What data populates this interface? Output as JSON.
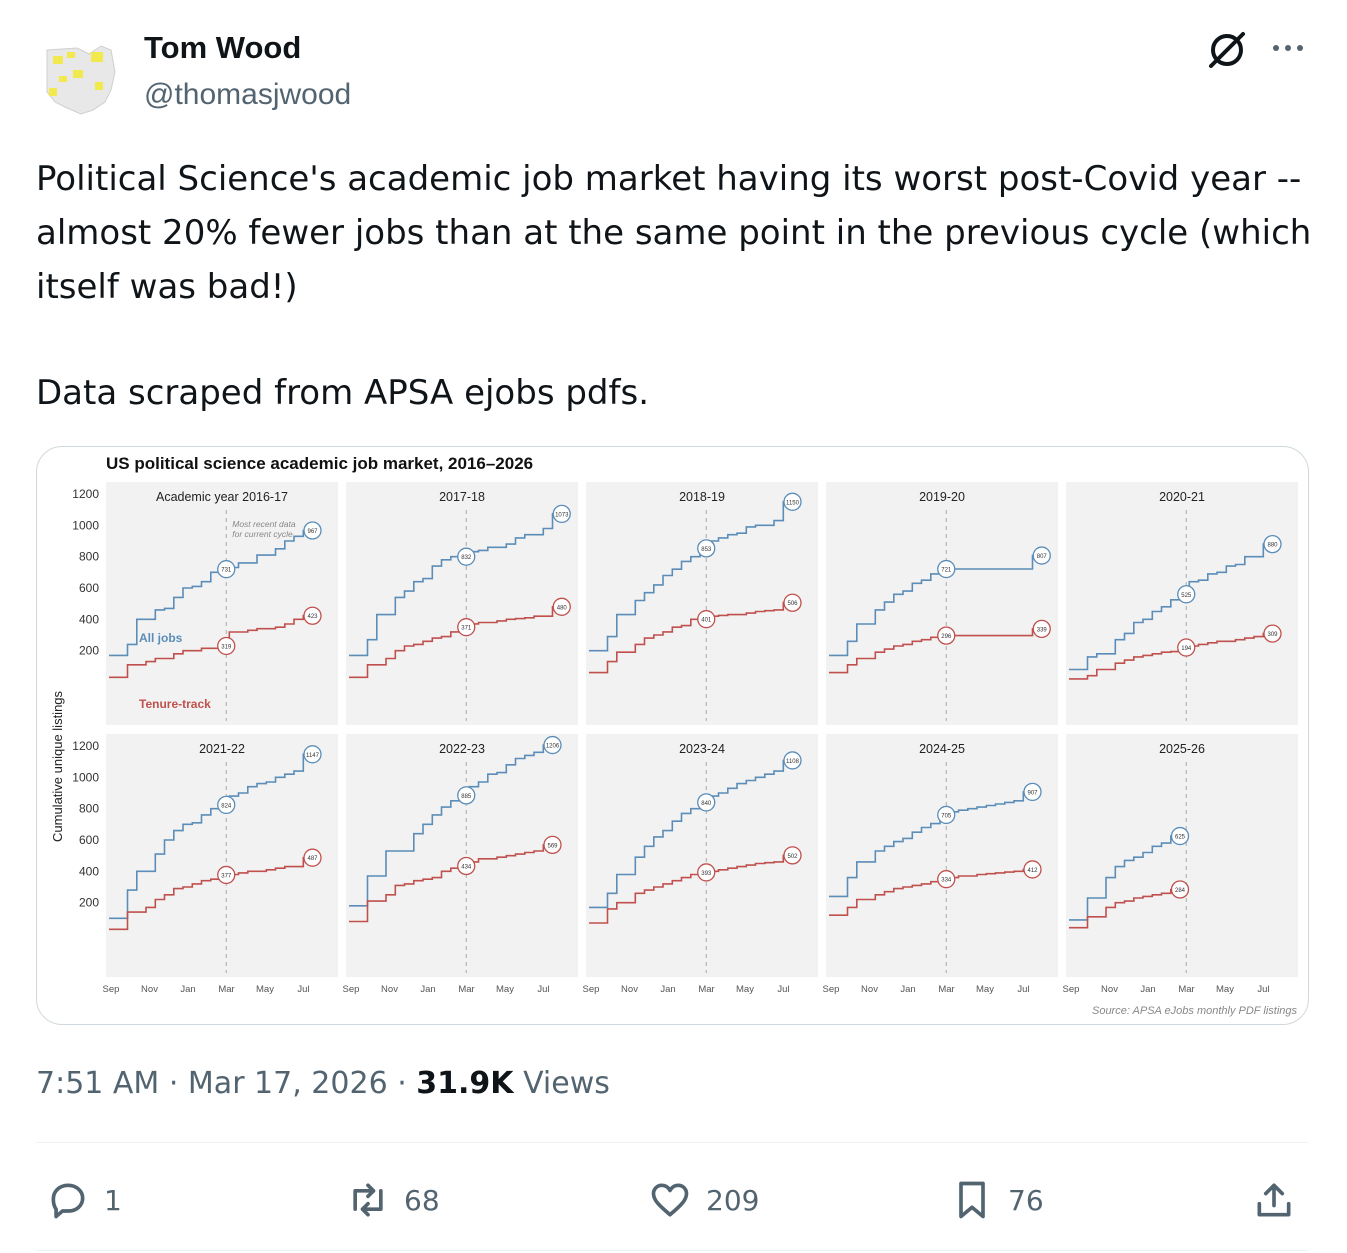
{
  "author": {
    "name": "Tom Wood",
    "handle": "@thomasjwood"
  },
  "icons": {
    "grok": "grok-icon",
    "more": "more-dots-icon",
    "reply": "reply-icon",
    "retweet": "retweet-icon",
    "like": "heart-icon",
    "bookmark": "bookmark-icon",
    "share": "share-icon"
  },
  "tweet": {
    "paragraph1": "Political Science's academic job market having its worst post-Covid year -- almost 20% fewer jobs than at the same point in the previous cycle (which itself was bad!)",
    "paragraph2": "Data scraped from APSA ejobs pdfs."
  },
  "meta": {
    "time": "7:51 AM",
    "sep1": " · ",
    "date": "Mar 17, 2026",
    "sep2": " · ",
    "views_count": "31.9K",
    "views_label": " Views"
  },
  "actions": {
    "replies": "1",
    "reposts": "68",
    "likes": "209",
    "bookmarks": "76"
  },
  "colors": {
    "all_jobs": "#5b8db8",
    "tenure_track": "#c0504d",
    "panel_bg": "#f2f2f2"
  },
  "chart_data": {
    "type": "line",
    "title": "US political science academic job market, 2016–2026",
    "ylabel": "Cumulative unique listings",
    "yticks": [
      200,
      400,
      600,
      800,
      1000,
      1200
    ],
    "ylim": [
      0,
      1300
    ],
    "xticks": [
      "Sep",
      "Nov",
      "Jan",
      "Mar",
      "May",
      "Jul"
    ],
    "annotation": [
      "Most recent data",
      "for current cycle"
    ],
    "series_labels": [
      "All jobs",
      "Tenure-track"
    ],
    "source": "Source: APSA eJobs monthly PDF listings",
    "grid": false,
    "panels": [
      {
        "title": "Academic year 2016-17",
        "all_jobs": [
          170,
          170,
          240,
          400,
          400,
          460,
          470,
          540,
          600,
          610,
          640,
          700,
          720,
          731,
          760,
          760,
          810,
          810,
          850,
          900,
          930,
          967
        ],
        "all_labels": [
          "731",
          "967"
        ],
        "tenure": [
          30,
          30,
          110,
          110,
          130,
          150,
          150,
          180,
          200,
          200,
          215,
          215,
          230,
          319,
          319,
          330,
          340,
          340,
          350,
          370,
          400,
          423
        ],
        "tenure_labels": [
          "319",
          "423"
        ]
      },
      {
        "title": "2017-18",
        "all_jobs": [
          170,
          170,
          270,
          430,
          430,
          540,
          580,
          640,
          660,
          740,
          780,
          800,
          800,
          832,
          840,
          860,
          860,
          880,
          920,
          940,
          940,
          980,
          1073
        ],
        "all_labels": [
          "832",
          "1073"
        ],
        "tenure": [
          30,
          30,
          110,
          110,
          150,
          200,
          230,
          240,
          260,
          280,
          290,
          320,
          350,
          371,
          380,
          380,
          390,
          400,
          405,
          410,
          420,
          420,
          480
        ],
        "tenure_labels": [
          "371",
          "480"
        ]
      },
      {
        "title": "2018-19",
        "all_jobs": [
          200,
          200,
          290,
          430,
          430,
          520,
          570,
          620,
          680,
          720,
          770,
          800,
          853,
          900,
          920,
          940,
          950,
          990,
          1000,
          1000,
          1030,
          1150
        ],
        "all_labels": [
          "853",
          "1150"
        ],
        "tenure": [
          60,
          60,
          130,
          190,
          190,
          240,
          280,
          300,
          320,
          350,
          360,
          400,
          401,
          420,
          425,
          430,
          430,
          440,
          450,
          455,
          460,
          506
        ],
        "tenure_labels": [
          "401",
          "506"
        ]
      },
      {
        "title": "2019-20",
        "all_jobs": [
          170,
          170,
          260,
          370,
          370,
          460,
          510,
          560,
          580,
          630,
          650,
          690,
          721,
          721,
          721,
          721,
          721,
          721,
          721,
          721,
          721,
          721,
          807
        ],
        "all_labels": [
          "721",
          "807"
        ],
        "tenure": [
          60,
          60,
          110,
          150,
          150,
          190,
          210,
          230,
          240,
          260,
          270,
          285,
          296,
          296,
          296,
          296,
          296,
          296,
          296,
          296,
          296,
          296,
          339
        ],
        "tenure_labels": [
          "296",
          "339"
        ]
      },
      {
        "title": "2020-21",
        "all_jobs": [
          80,
          80,
          160,
          180,
          180,
          270,
          310,
          380,
          400,
          450,
          480,
          525,
          560,
          640,
          650,
          690,
          700,
          740,
          750,
          800,
          800,
          880
        ],
        "all_labels": [
          "525",
          "880"
        ],
        "tenure": [
          20,
          20,
          40,
          80,
          80,
          120,
          140,
          160,
          170,
          180,
          190,
          194,
          220,
          230,
          240,
          250,
          260,
          260,
          270,
          280,
          290,
          309
        ],
        "tenure_labels": [
          "194",
          "309"
        ]
      },
      {
        "title": "2021-22",
        "all_jobs": [
          100,
          100,
          280,
          400,
          400,
          510,
          600,
          660,
          700,
          710,
          760,
          800,
          824,
          880,
          900,
          940,
          960,
          970,
          1000,
          1020,
          1040,
          1147
        ],
        "all_labels": [
          "824",
          "1147"
        ],
        "tenure": [
          30,
          30,
          140,
          140,
          170,
          220,
          250,
          290,
          300,
          320,
          340,
          350,
          377,
          380,
          390,
          400,
          400,
          410,
          420,
          430,
          430,
          487
        ],
        "tenure_labels": [
          "377",
          "487"
        ]
      },
      {
        "title": "2022-23",
        "all_jobs": [
          180,
          180,
          370,
          370,
          530,
          530,
          530,
          640,
          700,
          760,
          810,
          850,
          885,
          940,
          970,
          1020,
          1030,
          1080,
          1120,
          1140,
          1160,
          1206
        ],
        "all_labels": [
          "885",
          "1206"
        ],
        "tenure": [
          80,
          80,
          210,
          210,
          250,
          310,
          320,
          340,
          350,
          360,
          400,
          420,
          434,
          460,
          480,
          480,
          490,
          500,
          510,
          520,
          530,
          569
        ],
        "tenure_labels": [
          "434",
          "569"
        ]
      },
      {
        "title": "2023-24",
        "all_jobs": [
          170,
          170,
          260,
          380,
          380,
          490,
          560,
          620,
          660,
          720,
          770,
          800,
          840,
          880,
          900,
          930,
          960,
          980,
          1000,
          1020,
          1040,
          1108
        ],
        "all_labels": [
          "840",
          "1108"
        ],
        "tenure": [
          70,
          70,
          160,
          200,
          200,
          260,
          280,
          300,
          320,
          340,
          360,
          380,
          393,
          400,
          410,
          420,
          430,
          440,
          450,
          455,
          460,
          502
        ],
        "tenure_labels": [
          "393",
          "502"
        ]
      },
      {
        "title": "2024-25",
        "all_jobs": [
          240,
          240,
          360,
          460,
          460,
          530,
          560,
          590,
          610,
          650,
          680,
          705,
          760,
          780,
          790,
          800,
          810,
          820,
          830,
          840,
          850,
          907
        ],
        "all_labels": [
          "705",
          "907"
        ],
        "tenure": [
          120,
          120,
          170,
          220,
          220,
          250,
          270,
          290,
          300,
          310,
          320,
          334,
          350,
          360,
          370,
          370,
          380,
          385,
          390,
          395,
          400,
          412
        ],
        "tenure_labels": [
          "334",
          "412"
        ]
      },
      {
        "title": "2025-26",
        "all_jobs": [
          90,
          90,
          230,
          230,
          360,
          430,
          470,
          490,
          520,
          560,
          580,
          625
        ],
        "all_labels": [
          "625"
        ],
        "tenure": [
          40,
          40,
          110,
          110,
          170,
          200,
          210,
          230,
          240,
          250,
          260,
          284
        ],
        "tenure_labels": [
          "284"
        ]
      }
    ]
  }
}
